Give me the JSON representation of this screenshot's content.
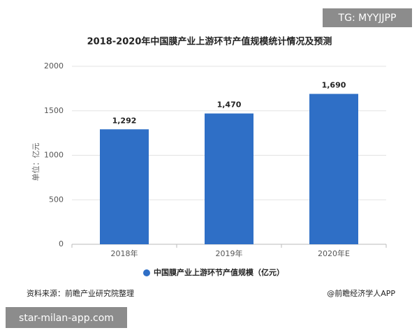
{
  "chart_data": {
    "type": "bar",
    "title": "2018-2020年中国膜产业上游环节产值规模统计情况及预测",
    "y_label": "单位：亿元",
    "categories": [
      "2018年",
      "2019年",
      "2020年E"
    ],
    "series": [
      {
        "name": "中国膜产业上游环节产值规模（亿元）",
        "color": "#2f6fc6",
        "values": [
          1292,
          1470,
          1690
        ],
        "value_labels": [
          "1,292",
          "1,470",
          "1,690"
        ]
      }
    ],
    "ylim": [
      0,
      2000
    ],
    "yticks": [
      0,
      500,
      1000,
      1500,
      2000
    ],
    "grid": true,
    "source": "资料来源：前瞻产业研究院整理",
    "credit": "@前瞻经济学人APP"
  },
  "overlays": {
    "top_right": "TG: MYYJJPP",
    "bottom_left": "star-milan-app.com"
  }
}
